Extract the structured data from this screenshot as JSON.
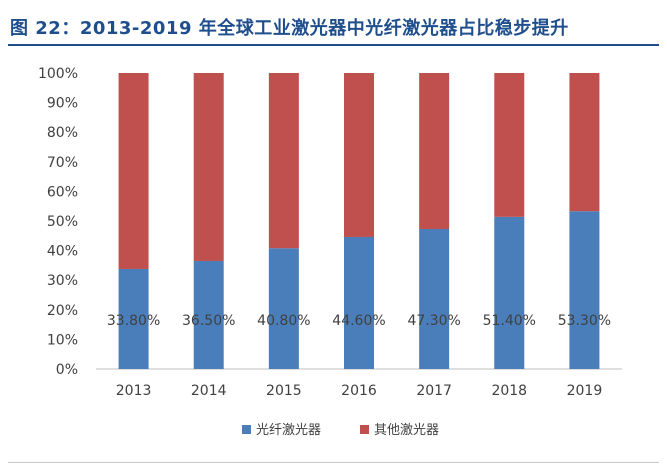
{
  "figure": {
    "title": "图 22：2013-2019 年全球工业激光器中光纤激光器占比稳步提升"
  },
  "chart_data": {
    "type": "bar",
    "stacked": true,
    "categories": [
      "2013",
      "2014",
      "2015",
      "2016",
      "2017",
      "2018",
      "2019"
    ],
    "series": [
      {
        "name": "光纤激光器",
        "values": [
          33.8,
          36.5,
          40.8,
          44.6,
          47.3,
          51.4,
          53.3
        ],
        "color": "#4a7ebb"
      },
      {
        "name": "其他激光器",
        "values": [
          66.2,
          63.5,
          59.2,
          55.4,
          52.7,
          48.6,
          46.7
        ],
        "color": "#c0504d"
      }
    ],
    "data_labels": [
      "33.80%",
      "36.50%",
      "40.80%",
      "44.60%",
      "47.30%",
      "51.40%",
      "53.30%"
    ],
    "y_ticks": [
      "0%",
      "10%",
      "20%",
      "30%",
      "40%",
      "50%",
      "60%",
      "70%",
      "80%",
      "90%",
      "100%"
    ],
    "ylim": [
      0,
      100
    ],
    "grid": false,
    "legend_position": "bottom"
  }
}
